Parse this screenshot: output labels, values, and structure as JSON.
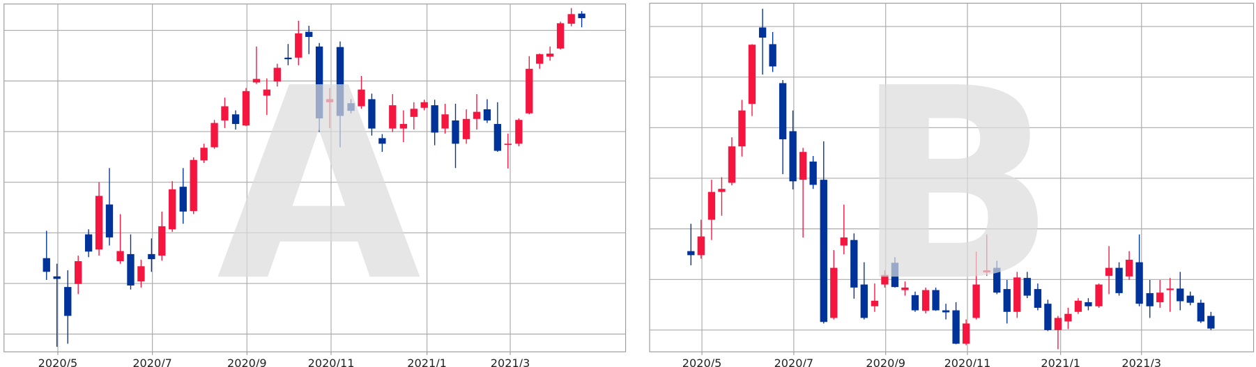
{
  "chart_data": [
    {
      "type": "candlestick",
      "watermark": "A",
      "up_color": "#f5163f",
      "down_color": "#00339a",
      "grid": true,
      "xlim": [
        3.81,
        17.55
      ],
      "ylim": [
        -3.5,
        65.2
      ],
      "xticks": [
        {
          "value": 5,
          "label": "2020/5"
        },
        {
          "value": 7.09,
          "label": "2020/7"
        },
        {
          "value": 9.18,
          "label": "2020/9"
        },
        {
          "value": 11.04,
          "label": "2020/11"
        },
        {
          "value": 13.16,
          "label": "2021/1"
        },
        {
          "value": 15,
          "label": "2021/3"
        }
      ],
      "yticks": [
        0,
        10,
        20,
        30,
        40,
        50,
        60
      ],
      "x": [
        4.75,
        4.98,
        5.22,
        5.45,
        5.68,
        5.91,
        6.14,
        6.38,
        6.61,
        6.84,
        7.07,
        7.3,
        7.53,
        7.77,
        8.0,
        8.23,
        8.46,
        8.69,
        8.93,
        9.16,
        9.39,
        9.62,
        9.85,
        10.09,
        10.32,
        10.55,
        10.78,
        11.01,
        11.24,
        11.48,
        11.71,
        11.94,
        12.17,
        12.4,
        12.64,
        12.87,
        13.1,
        13.33,
        13.56,
        13.79,
        14.03,
        14.26,
        14.49,
        14.72,
        14.95,
        15.19,
        15.42,
        15.65,
        15.88,
        16.11,
        16.35,
        16.58
      ],
      "open": [
        15.0,
        11.4,
        9.3,
        9.9,
        19.7,
        16.7,
        25.6,
        14.4,
        15.8,
        10.4,
        15.8,
        15.5,
        20.7,
        29.1,
        24.3,
        34.3,
        36.9,
        42.2,
        43.4,
        41.2,
        49.7,
        47.1,
        49.9,
        54.6,
        54.6,
        59.7,
        56.8,
        45.8,
        56.7,
        45.6,
        45.0,
        46.4,
        38.7,
        40.6,
        40.6,
        42.9,
        44.7,
        45.2,
        40.6,
        42.2,
        38.5,
        42.5,
        44.4,
        41.5,
        37.4,
        37.6,
        43.6,
        53.4,
        54.8,
        56.4,
        61.3,
        63.3
      ],
      "high": [
        20.4,
        13.9,
        12.6,
        15.5,
        20.7,
        30.0,
        32.8,
        23.7,
        19.7,
        14.7,
        18.9,
        24.2,
        30.2,
        32.8,
        34.9,
        37.6,
        42.3,
        46.7,
        44.2,
        48.6,
        56.8,
        50.5,
        53.4,
        57.3,
        61.9,
        60.9,
        57.5,
        48.6,
        57.8,
        46.4,
        51.0,
        47.5,
        39.5,
        47.4,
        44.2,
        45.8,
        46.3,
        46.3,
        45.5,
        45.5,
        44.4,
        47.4,
        46.4,
        45.8,
        39.6,
        42.6,
        54.9,
        55.4,
        56.8,
        61.7,
        64.4,
        63.8
      ],
      "low": [
        10.7,
        -2.5,
        -1.9,
        7.9,
        15.2,
        15.5,
        17.5,
        13.9,
        8.8,
        9.2,
        12.3,
        14.5,
        20.2,
        21.8,
        23.7,
        33.8,
        36.6,
        40.7,
        40.4,
        41.1,
        49.4,
        43.3,
        48.9,
        53.1,
        53.1,
        55.3,
        39.9,
        40.7,
        36.9,
        43.6,
        44.5,
        39.2,
        36.0,
        39.9,
        37.9,
        40.4,
        44.2,
        37.3,
        39.6,
        32.8,
        37.6,
        40.4,
        41.7,
        36.0,
        32.7,
        37.1,
        43.4,
        52.4,
        54.0,
        56.2,
        60.8,
        60.6
      ],
      "close": [
        12.3,
        10.9,
        3.6,
        14.4,
        16.3,
        27.3,
        19.1,
        16.4,
        9.6,
        13.4,
        14.8,
        21.3,
        28.6,
        24.2,
        34.4,
        36.8,
        41.7,
        45.0,
        41.5,
        48.0,
        50.4,
        48.3,
        52.6,
        54.3,
        59.4,
        58.7,
        42.6,
        46.4,
        43.1,
        44.1,
        48.3,
        40.6,
        37.6,
        45.2,
        41.5,
        44.5,
        45.8,
        39.8,
        43.4,
        37.6,
        42.5,
        43.9,
        42.2,
        36.2,
        37.6,
        42.3,
        52.4,
        55.3,
        55.4,
        61.4,
        63.2,
        62.4
      ]
    },
    {
      "type": "candlestick",
      "watermark": "B",
      "up_color": "#f5163f",
      "down_color": "#00339a",
      "grid": true,
      "xlim": [
        3.81,
        17.55
      ],
      "ylim": [
        -4.3,
        64.6
      ],
      "xticks": [
        {
          "value": 5,
          "label": "2020/5"
        },
        {
          "value": 7.09,
          "label": "2020/7"
        },
        {
          "value": 9.18,
          "label": "2020/9"
        },
        {
          "value": 11.04,
          "label": "2020/11"
        },
        {
          "value": 13.16,
          "label": "2021/1"
        },
        {
          "value": 15,
          "label": "2021/3"
        }
      ],
      "yticks": [
        0,
        10,
        20,
        30,
        40,
        50,
        60
      ],
      "x": [
        4.75,
        4.98,
        5.22,
        5.45,
        5.68,
        5.91,
        6.14,
        6.38,
        6.61,
        6.84,
        7.07,
        7.3,
        7.53,
        7.77,
        8.0,
        8.23,
        8.46,
        8.69,
        8.93,
        9.16,
        9.39,
        9.62,
        9.85,
        10.09,
        10.32,
        10.55,
        10.78,
        11.01,
        11.24,
        11.48,
        11.71,
        11.94,
        12.17,
        12.4,
        12.64,
        12.87,
        13.1,
        13.33,
        13.56,
        13.79,
        14.03,
        14.26,
        14.49,
        14.72,
        14.95,
        15.19,
        15.42,
        15.65,
        15.88,
        16.11,
        16.35,
        16.58
      ],
      "open": [
        15.6,
        14.8,
        21.8,
        27.3,
        29.1,
        36.3,
        44.7,
        59.8,
        56.5,
        48.8,
        39.3,
        29.7,
        33.3,
        29.7,
        2.4,
        16.7,
        17.8,
        9.0,
        4.7,
        9.0,
        13.3,
        7.9,
        6.9,
        3.8,
        7.9,
        3.9,
        3.9,
        -2.7,
        2.4,
        11.4,
        12.3,
        8.1,
        3.6,
        10.3,
        8.1,
        5.2,
        0.0,
        1.7,
        3.6,
        5.5,
        4.7,
        10.7,
        12.3,
        10.6,
        13.4,
        7.3,
        5.5,
        7.9,
        8.2,
        6.8,
        5.4,
        2.8
      ],
      "high": [
        21.0,
        21.8,
        29.7,
        30.2,
        38.1,
        45.5,
        56.5,
        63.5,
        58.9,
        49.4,
        43.4,
        36.0,
        34.4,
        37.3,
        15.8,
        24.8,
        19.1,
        13.4,
        9.2,
        11.8,
        14.4,
        9.6,
        7.6,
        8.4,
        8.4,
        5.2,
        5.5,
        2.1,
        15.5,
        18.9,
        13.7,
        9.9,
        11.5,
        11.5,
        9.2,
        6.0,
        2.8,
        4.4,
        6.3,
        6.3,
        9.2,
        16.6,
        13.4,
        15.6,
        18.9,
        9.9,
        9.9,
        10.3,
        11.5,
        7.6,
        6.0,
        3.6
      ],
      "low": [
        12.8,
        14.1,
        17.8,
        22.6,
        28.6,
        34.3,
        42.3,
        50.5,
        51.0,
        30.8,
        27.8,
        18.3,
        27.9,
        1.3,
        2.1,
        15.0,
        6.2,
        2.1,
        3.6,
        8.4,
        8.4,
        6.8,
        3.6,
        3.3,
        3.8,
        2.1,
        -2.8,
        -3.0,
        2.1,
        10.7,
        7.1,
        1.3,
        2.4,
        6.3,
        3.9,
        -0.2,
        -3.8,
        0.2,
        3.2,
        3.9,
        4.4,
        7.1,
        6.8,
        9.9,
        4.7,
        2.4,
        4.4,
        3.6,
        3.9,
        4.9,
        1.4,
        0.0
      ],
      "close": [
        14.8,
        18.5,
        27.3,
        27.9,
        36.3,
        43.4,
        56.4,
        57.8,
        52.1,
        37.7,
        29.4,
        35.2,
        28.7,
        1.6,
        12.3,
        18.3,
        8.4,
        2.4,
        5.8,
        10.9,
        8.5,
        8.4,
        3.9,
        7.9,
        3.9,
        3.5,
        -2.7,
        1.3,
        9.0,
        11.8,
        7.4,
        3.6,
        10.4,
        6.8,
        4.4,
        0.0,
        2.4,
        3.2,
        5.8,
        4.7,
        9.0,
        12.3,
        7.3,
        13.9,
        5.2,
        4.7,
        7.4,
        8.2,
        5.7,
        5.4,
        1.7,
        0.3
      ]
    }
  ]
}
